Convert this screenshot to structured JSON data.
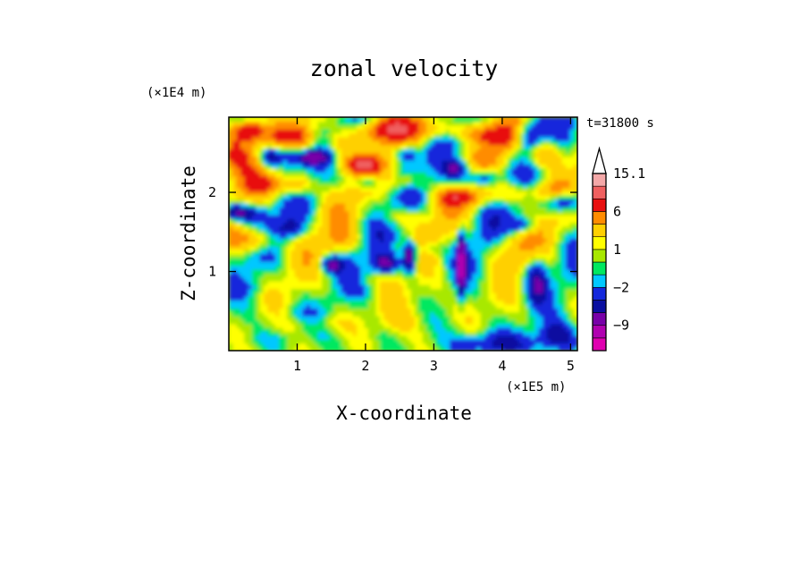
{
  "chart_data": {
    "type": "heatmap",
    "title": "zonal velocity",
    "xlabel": "X-coordinate",
    "ylabel": "Z-coordinate",
    "x_unit": "(×1E5 m)",
    "y_unit": "(×1E4 m)",
    "time_label": "t=31800 s",
    "xlim": [
      0.0,
      5.1
    ],
    "ylim": [
      0.0,
      2.95
    ],
    "x_ticks": [
      {
        "value": 1,
        "label": "1"
      },
      {
        "value": 2,
        "label": "2"
      },
      {
        "value": 3,
        "label": "3"
      },
      {
        "value": 4,
        "label": "4"
      },
      {
        "value": 5,
        "label": "5"
      }
    ],
    "y_ticks": [
      {
        "value": 1,
        "label": "1"
      },
      {
        "value": 2,
        "label": "2"
      }
    ],
    "colorbar": {
      "levels": [
        {
          "value": -16,
          "color": "#e000b0"
        },
        {
          "value": -12,
          "color": "#b000b0"
        },
        {
          "value": -9,
          "color": "#7800a8"
        },
        {
          "value": -6,
          "color": "#0a0fa0"
        },
        {
          "value": -4,
          "color": "#1428dc"
        },
        {
          "value": -2,
          "color": "#00c8ff"
        },
        {
          "value": -1,
          "color": "#00e860"
        },
        {
          "value": 0,
          "color": "#a8e800"
        },
        {
          "value": 1,
          "color": "#ffff00"
        },
        {
          "value": 2,
          "color": "#ffd000"
        },
        {
          "value": 4,
          "color": "#ff8c00"
        },
        {
          "value": 6,
          "color": "#e81010"
        },
        {
          "value": 9,
          "color": "#f06060"
        },
        {
          "value": 12,
          "color": "#f4a8a8"
        },
        {
          "value": 15.1,
          "color": "#ffffff"
        }
      ],
      "tick_labels": [
        {
          "value": 15.1,
          "label": "15.1"
        },
        {
          "value": 6,
          "label": "6"
        },
        {
          "value": 1,
          "label": "1"
        },
        {
          "value": -2,
          "label": "−2"
        },
        {
          "value": -9,
          "label": "−9"
        }
      ]
    }
  }
}
